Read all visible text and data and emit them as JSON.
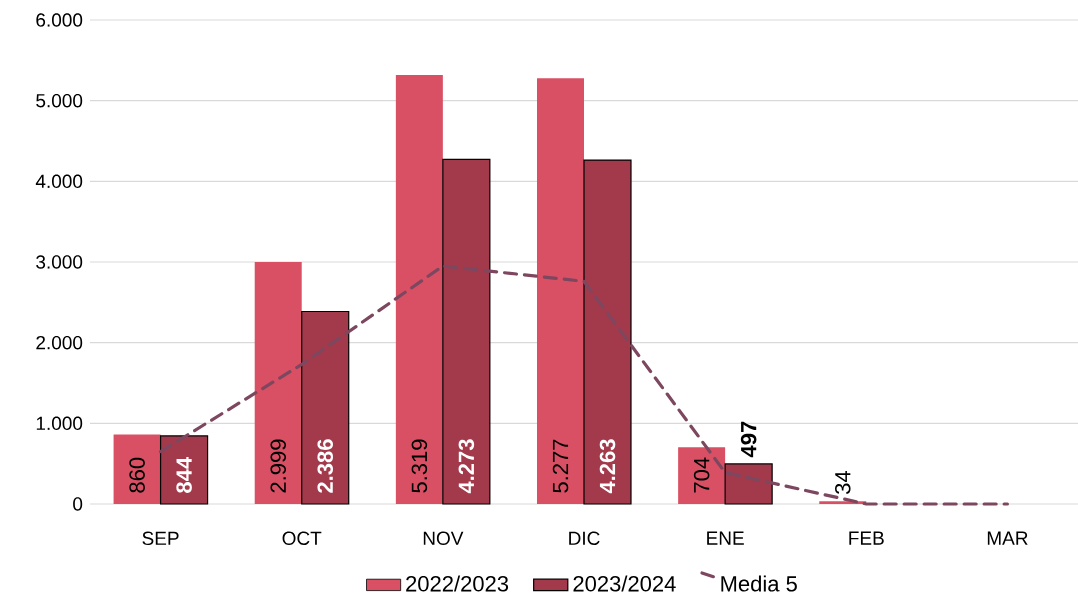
{
  "chart_data": {
    "type": "bar",
    "categories": [
      "SEP",
      "OCT",
      "NOV",
      "DIC",
      "ENE",
      "FEB",
      "MAR"
    ],
    "series": [
      {
        "name": "2022/2023",
        "color": "#d95064",
        "values": [
          860,
          2999,
          5319,
          5277,
          704,
          34,
          null
        ],
        "value_labels": [
          "860",
          "2.999",
          "5.319",
          "5.277",
          "704",
          "34",
          null
        ]
      },
      {
        "name": "2023/2024",
        "color": "#a33a4c",
        "values": [
          844,
          2386,
          4273,
          4263,
          497,
          null,
          null
        ],
        "value_labels": [
          "844",
          "2.386",
          "4.273",
          "4.263",
          "497",
          null,
          null
        ]
      },
      {
        "name": "Media 5",
        "type": "line",
        "color": "#7d4760",
        "line_style": "dashed",
        "marker": "none",
        "values": [
          650,
          1730,
          2950,
          2760,
          390,
          0,
          0
        ]
      }
    ],
    "ylim": [
      0,
      6000
    ],
    "yticks": [
      {
        "value": 0,
        "label": "0"
      },
      {
        "value": 1000,
        "label": "1.000"
      },
      {
        "value": 2000,
        "label": "2.000"
      },
      {
        "value": 3000,
        "label": "3.000"
      },
      {
        "value": 4000,
        "label": "4.000"
      },
      {
        "value": 5000,
        "label": "5.000"
      },
      {
        "value": 6000,
        "label": "6.000"
      }
    ],
    "grid": "y",
    "legend": "bottom"
  }
}
